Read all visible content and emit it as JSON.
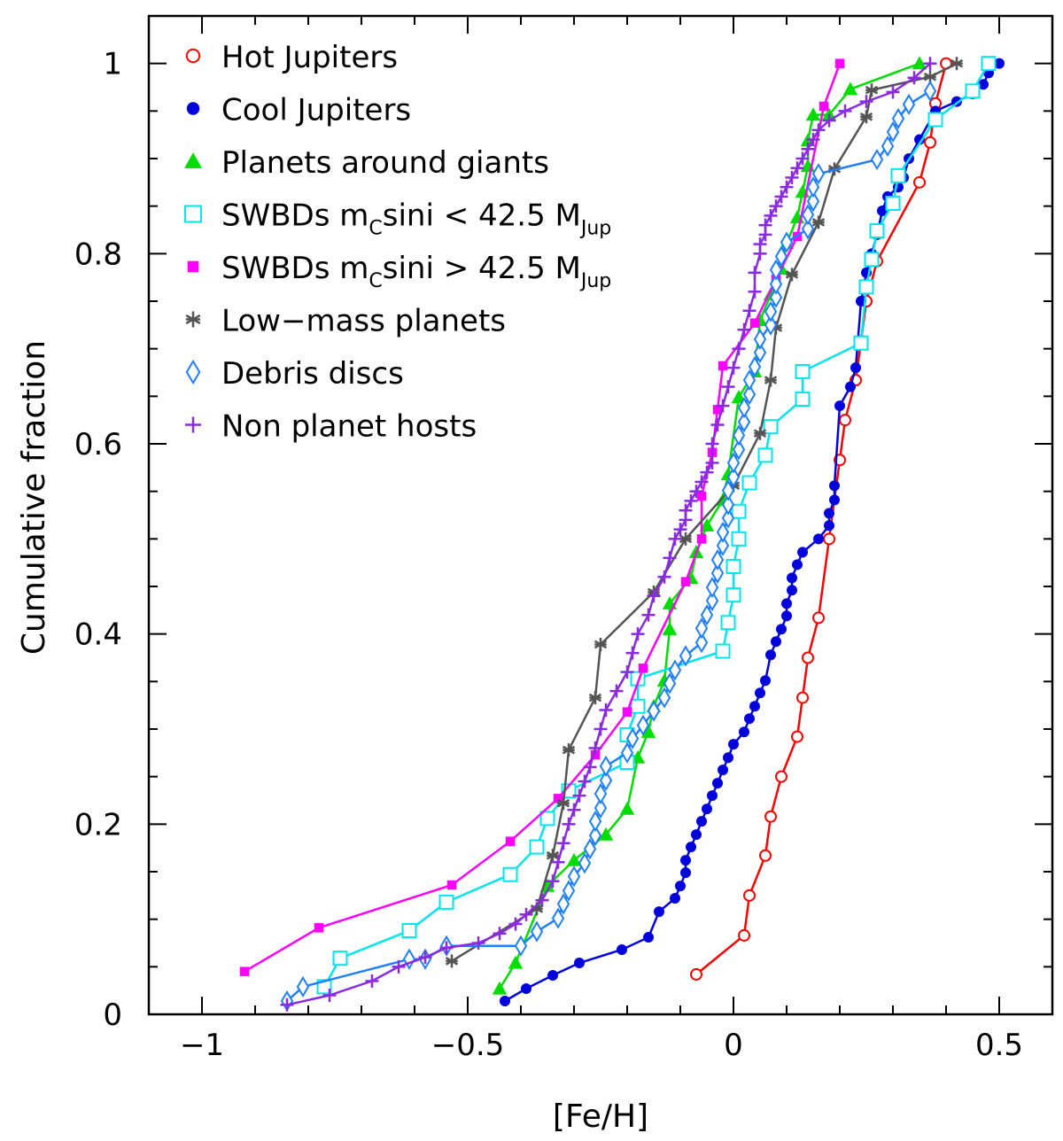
{
  "chart_data": {
    "type": "line",
    "title": "",
    "xlabel": "[Fe/H]",
    "ylabel": "Cumulative fraction",
    "xlim": [
      -1.1,
      0.6
    ],
    "ylim": [
      0,
      1.05
    ],
    "x_ticks": [
      -1,
      -0.5,
      0,
      0.5
    ],
    "x_tick_labels": [
      "−1",
      "−0.5",
      "0",
      "0.5"
    ],
    "y_ticks": [
      0,
      0.2,
      0.4,
      0.6,
      0.8,
      1
    ],
    "y_tick_labels": [
      "0",
      "0.2",
      "0.4",
      "0.6",
      "0.8",
      "1"
    ],
    "legend_position": "top-left",
    "series": [
      {
        "name": "Hot Jupiters",
        "legend": {
          "prefix": "Hot Jupiters"
        },
        "color": "#ff0000",
        "marker": "open-circle",
        "x": [
          -0.07,
          0.02,
          0.03,
          0.06,
          0.07,
          0.09,
          0.12,
          0.13,
          0.14,
          0.16,
          0.18,
          0.2,
          0.21,
          0.23,
          0.24,
          0.25,
          0.27,
          0.35,
          0.37,
          0.38,
          0.4
        ],
        "y": [
          0.042,
          0.083,
          0.125,
          0.167,
          0.208,
          0.25,
          0.292,
          0.333,
          0.375,
          0.417,
          0.5,
          0.583,
          0.625,
          0.667,
          0.708,
          0.75,
          0.792,
          0.875,
          0.917,
          0.958,
          1.0
        ]
      },
      {
        "name": "Cool Jupiters",
        "legend": {
          "prefix": "Cool Jupiters"
        },
        "color": "#0000dd",
        "marker": "filled-circle",
        "x": [
          -0.43,
          -0.39,
          -0.34,
          -0.29,
          -0.21,
          -0.16,
          -0.14,
          -0.11,
          -0.1,
          -0.09,
          -0.09,
          -0.08,
          -0.07,
          -0.06,
          -0.05,
          -0.04,
          -0.03,
          -0.02,
          -0.01,
          0.0,
          0.02,
          0.03,
          0.04,
          0.05,
          0.06,
          0.07,
          0.08,
          0.09,
          0.1,
          0.1,
          0.11,
          0.11,
          0.12,
          0.13,
          0.16,
          0.18,
          0.18,
          0.19,
          0.19,
          0.2,
          0.22,
          0.23,
          0.24,
          0.25,
          0.26,
          0.27,
          0.28,
          0.29,
          0.31,
          0.32,
          0.33,
          0.35,
          0.38,
          0.42,
          0.45,
          0.47,
          0.48,
          0.5
        ],
        "y": [
          0.014,
          0.027,
          0.041,
          0.054,
          0.068,
          0.081,
          0.108,
          0.122,
          0.135,
          0.149,
          0.162,
          0.176,
          0.189,
          0.203,
          0.216,
          0.23,
          0.243,
          0.257,
          0.27,
          0.284,
          0.297,
          0.311,
          0.324,
          0.338,
          0.351,
          0.378,
          0.392,
          0.405,
          0.419,
          0.432,
          0.446,
          0.459,
          0.473,
          0.486,
          0.5,
          0.514,
          0.527,
          0.541,
          0.556,
          0.64,
          0.66,
          0.68,
          0.75,
          0.78,
          0.8,
          0.82,
          0.845,
          0.86,
          0.87,
          0.88,
          0.9,
          0.92,
          0.95,
          0.96,
          0.968,
          0.978,
          0.99,
          1.0
        ]
      },
      {
        "name": "Planets around giants",
        "legend": {
          "prefix": "Planets around giants"
        },
        "color": "#00dd00",
        "marker": "filled-triangle",
        "x": [
          -0.44,
          -0.41,
          -0.35,
          -0.3,
          -0.24,
          -0.2,
          -0.18,
          -0.16,
          -0.15,
          -0.13,
          -0.12,
          -0.12,
          -0.08,
          -0.07,
          -0.05,
          -0.02,
          -0.01,
          0.01,
          0.04,
          0.05,
          0.07,
          0.09,
          0.1,
          0.12,
          0.13,
          0.14,
          0.14,
          0.15,
          0.18,
          0.22,
          0.35
        ],
        "y": [
          0.027,
          0.054,
          0.135,
          0.162,
          0.189,
          0.216,
          0.27,
          0.297,
          0.324,
          0.351,
          0.405,
          0.432,
          0.459,
          0.486,
          0.514,
          0.541,
          0.568,
          0.649,
          0.676,
          0.73,
          0.757,
          0.784,
          0.811,
          0.838,
          0.865,
          0.892,
          0.919,
          0.946,
          0.946,
          0.973,
          1.0
        ]
      },
      {
        "name": "SWBDs mCsini < 42.5 MJup",
        "legend": {
          "prefix": "SWBDs m",
          "sub1": "C",
          "mid": "sini < 42.5 M",
          "sub2": "Jup"
        },
        "color": "#00e5ee",
        "marker": "open-square",
        "x": [
          -0.77,
          -0.74,
          -0.61,
          -0.54,
          -0.42,
          -0.37,
          -0.35,
          -0.31,
          -0.2,
          -0.2,
          -0.18,
          -0.18,
          -0.02,
          -0.01,
          0.0,
          0.0,
          0.01,
          0.01,
          0.03,
          0.06,
          0.07,
          0.13,
          0.13,
          0.24,
          0.25,
          0.26,
          0.27,
          0.3,
          0.31,
          0.38,
          0.45,
          0.48
        ],
        "y": [
          0.029,
          0.059,
          0.088,
          0.118,
          0.147,
          0.176,
          0.206,
          0.235,
          0.265,
          0.294,
          0.324,
          0.353,
          0.382,
          0.412,
          0.441,
          0.471,
          0.5,
          0.529,
          0.559,
          0.588,
          0.618,
          0.647,
          0.676,
          0.706,
          0.765,
          0.794,
          0.824,
          0.853,
          0.882,
          0.941,
          0.971,
          1.0
        ]
      },
      {
        "name": "SWBDs mCsini > 42.5 MJup",
        "legend": {
          "prefix": "SWBDs m",
          "sub1": "C",
          "mid": "sini > 42.5 M",
          "sub2": "Jup"
        },
        "color": "#ff00ff",
        "marker": "filled-square",
        "x": [
          -0.92,
          -0.78,
          -0.53,
          -0.42,
          -0.33,
          -0.26,
          -0.2,
          -0.17,
          -0.09,
          -0.06,
          -0.06,
          -0.04,
          -0.03,
          -0.02,
          0.04,
          0.08,
          0.12,
          0.17,
          0.2
        ],
        "y": [
          0.045,
          0.091,
          0.136,
          0.182,
          0.227,
          0.273,
          0.318,
          0.364,
          0.455,
          0.5,
          0.545,
          0.591,
          0.636,
          0.682,
          0.727,
          0.773,
          0.818,
          0.955,
          1.0
        ]
      },
      {
        "name": "Low-mass planets",
        "legend": {
          "prefix": "Low−mass planets"
        },
        "color": "#555555",
        "marker": "asterisk",
        "x": [
          -0.53,
          -0.37,
          -0.34,
          -0.32,
          -0.31,
          -0.26,
          -0.25,
          -0.15,
          -0.09,
          0.0,
          0.05,
          0.07,
          0.08,
          0.11,
          0.16,
          0.19,
          0.25,
          0.26,
          0.37,
          0.42
        ],
        "y": [
          0.056,
          0.111,
          0.167,
          0.222,
          0.278,
          0.333,
          0.389,
          0.444,
          0.5,
          0.556,
          0.611,
          0.667,
          0.722,
          0.778,
          0.833,
          0.889,
          0.944,
          0.972,
          0.986,
          1.0
        ]
      },
      {
        "name": "Debris discs",
        "legend": {
          "prefix": "Debris discs"
        },
        "color": "#1e7fff",
        "marker": "open-diamond",
        "x": [
          -0.84,
          -0.81,
          -0.61,
          -0.58,
          -0.54,
          -0.4,
          -0.37,
          -0.33,
          -0.32,
          -0.31,
          -0.3,
          -0.28,
          -0.27,
          -0.26,
          -0.26,
          -0.25,
          -0.25,
          -0.24,
          -0.24,
          -0.2,
          -0.19,
          -0.17,
          -0.15,
          -0.13,
          -0.12,
          -0.11,
          -0.09,
          -0.06,
          -0.06,
          -0.05,
          -0.04,
          -0.04,
          -0.03,
          -0.03,
          -0.02,
          -0.02,
          -0.01,
          -0.01,
          -0.01,
          0.0,
          0.0,
          0.01,
          0.01,
          0.02,
          0.02,
          0.03,
          0.03,
          0.04,
          0.05,
          0.05,
          0.07,
          0.07,
          0.08,
          0.08,
          0.08,
          0.09,
          0.1,
          0.14,
          0.14,
          0.15,
          0.15,
          0.16,
          0.27,
          0.29,
          0.3,
          0.31,
          0.33,
          0.37
        ],
        "y": [
          0.014,
          0.029,
          0.058,
          0.058,
          0.072,
          0.072,
          0.087,
          0.101,
          0.116,
          0.13,
          0.145,
          0.159,
          0.174,
          0.188,
          0.203,
          0.217,
          0.232,
          0.246,
          0.261,
          0.275,
          0.29,
          0.304,
          0.319,
          0.333,
          0.348,
          0.362,
          0.377,
          0.391,
          0.406,
          0.42,
          0.435,
          0.449,
          0.464,
          0.478,
          0.493,
          0.507,
          0.522,
          0.536,
          0.551,
          0.565,
          0.58,
          0.594,
          0.609,
          0.623,
          0.638,
          0.652,
          0.667,
          0.681,
          0.696,
          0.71,
          0.725,
          0.739,
          0.754,
          0.768,
          0.783,
          0.797,
          0.812,
          0.826,
          0.841,
          0.855,
          0.87,
          0.884,
          0.899,
          0.913,
          0.928,
          0.942,
          0.957,
          0.971
        ]
      },
      {
        "name": "Non planet hosts",
        "legend": {
          "prefix": "Non planet hosts"
        },
        "color": "#8a2be2",
        "marker": "plus",
        "x": [
          -0.84,
          -0.76,
          -0.68,
          -0.63,
          -0.58,
          -0.54,
          -0.48,
          -0.44,
          -0.41,
          -0.39,
          -0.36,
          -0.34,
          -0.33,
          -0.32,
          -0.31,
          -0.3,
          -0.29,
          -0.28,
          -0.27,
          -0.26,
          -0.25,
          -0.24,
          -0.22,
          -0.2,
          -0.19,
          -0.18,
          -0.16,
          -0.15,
          -0.13,
          -0.12,
          -0.11,
          -0.1,
          -0.09,
          -0.09,
          -0.08,
          -0.07,
          -0.06,
          -0.05,
          -0.04,
          -0.04,
          -0.03,
          -0.02,
          -0.01,
          0.0,
          0.01,
          0.02,
          0.03,
          0.04,
          0.04,
          0.05,
          0.05,
          0.06,
          0.06,
          0.07,
          0.08,
          0.09,
          0.1,
          0.11,
          0.12,
          0.13,
          0.14,
          0.15,
          0.16,
          0.18,
          0.21,
          0.25,
          0.3,
          0.34,
          0.37
        ],
        "y": [
          0.01,
          0.02,
          0.035,
          0.05,
          0.06,
          0.07,
          0.075,
          0.085,
          0.095,
          0.105,
          0.12,
          0.14,
          0.16,
          0.18,
          0.2,
          0.215,
          0.23,
          0.245,
          0.26,
          0.28,
          0.3,
          0.32,
          0.34,
          0.36,
          0.38,
          0.4,
          0.42,
          0.44,
          0.46,
          0.48,
          0.5,
          0.51,
          0.52,
          0.53,
          0.54,
          0.55,
          0.56,
          0.57,
          0.58,
          0.6,
          0.62,
          0.64,
          0.66,
          0.68,
          0.7,
          0.72,
          0.74,
          0.76,
          0.78,
          0.8,
          0.81,
          0.82,
          0.83,
          0.84,
          0.85,
          0.86,
          0.87,
          0.88,
          0.89,
          0.9,
          0.91,
          0.92,
          0.93,
          0.94,
          0.95,
          0.96,
          0.97,
          0.985,
          1.0
        ]
      }
    ]
  }
}
